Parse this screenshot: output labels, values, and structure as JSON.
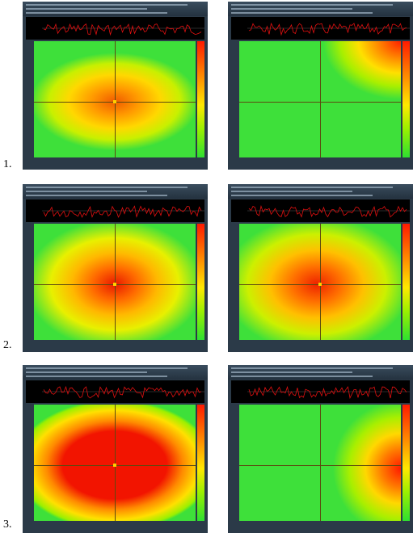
{
  "figures": [
    {
      "label": "1."
    },
    {
      "label": "2."
    },
    {
      "label": "3."
    }
  ]
}
